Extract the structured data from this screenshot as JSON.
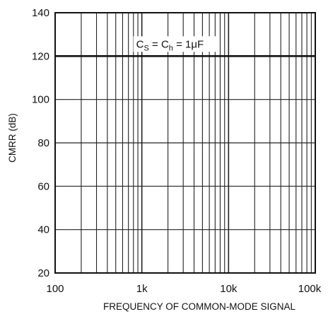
{
  "chart_data": {
    "type": "line",
    "title": "",
    "xlabel": "FREQUENCY OF COMMON-MODE SIGNAL",
    "ylabel": "CMRR (dB)",
    "x_scale": "log",
    "xlim": [
      100,
      100000
    ],
    "ylim": [
      20,
      140
    ],
    "x_ticks": [
      100,
      1000,
      10000,
      100000
    ],
    "x_tick_labels": [
      "100",
      "1k",
      "10k",
      "100k"
    ],
    "y_ticks": [
      20,
      40,
      60,
      80,
      100,
      120,
      140
    ],
    "y_tick_labels": [
      "20",
      "40",
      "60",
      "80",
      "100",
      "120",
      "140"
    ],
    "grid": true,
    "series": [
      {
        "x": [
          100,
          1000,
          10000,
          100000
        ],
        "y": [
          120,
          120,
          120,
          120
        ],
        "color": "#111111"
      }
    ],
    "annotations": [
      {
        "parts": [
          {
            "text": "C",
            "sub": false
          },
          {
            "text": "S",
            "sub": true
          },
          {
            "text": " = C",
            "sub": false
          },
          {
            "text": "h",
            "sub": true
          },
          {
            "text": " = 1μF",
            "sub": false
          }
        ],
        "at": {
          "x": 1000,
          "y": 120
        }
      }
    ]
  }
}
